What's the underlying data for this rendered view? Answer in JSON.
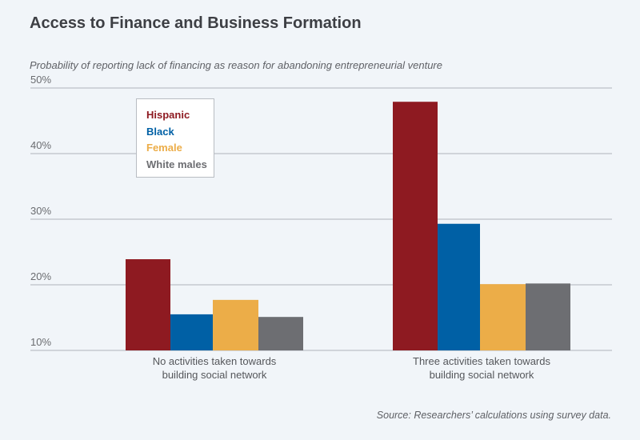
{
  "header": {
    "title": "Access to Finance and Business Formation",
    "subtitle": "Probability of reporting lack of financing as reason for abandoning entrepreneurial venture"
  },
  "footer": {
    "source": "Source: Researchers’ calculations using survey data."
  },
  "chart_data": {
    "type": "bar",
    "title": "Access to Finance and Business Formation",
    "subtitle": "Probability of reporting lack of financing as reason for abandoning entrepreneurial venture",
    "xlabel": "",
    "ylabel": "",
    "categories": [
      [
        "No activities taken towards",
        "building social network"
      ],
      [
        "Three activities taken towards",
        "building social network"
      ]
    ],
    "series": [
      {
        "name": "Hispanic",
        "color": "#8e1a21",
        "values": [
          23.9,
          47.9
        ]
      },
      {
        "name": "Black",
        "color": "#0060a5",
        "values": [
          15.5,
          29.3
        ]
      },
      {
        "name": "Female",
        "color": "#ecad48",
        "values": [
          17.7,
          20.1
        ]
      },
      {
        "name": "White males",
        "color": "#6d6e72",
        "values": [
          15.1,
          20.2
        ]
      }
    ],
    "ylim": [
      10,
      50
    ],
    "yticks": [
      "10%",
      "20%",
      "30%",
      "40%",
      "50%"
    ],
    "ytick_values": [
      10,
      20,
      30,
      40,
      50
    ],
    "grid": true,
    "legend": "top-left"
  }
}
